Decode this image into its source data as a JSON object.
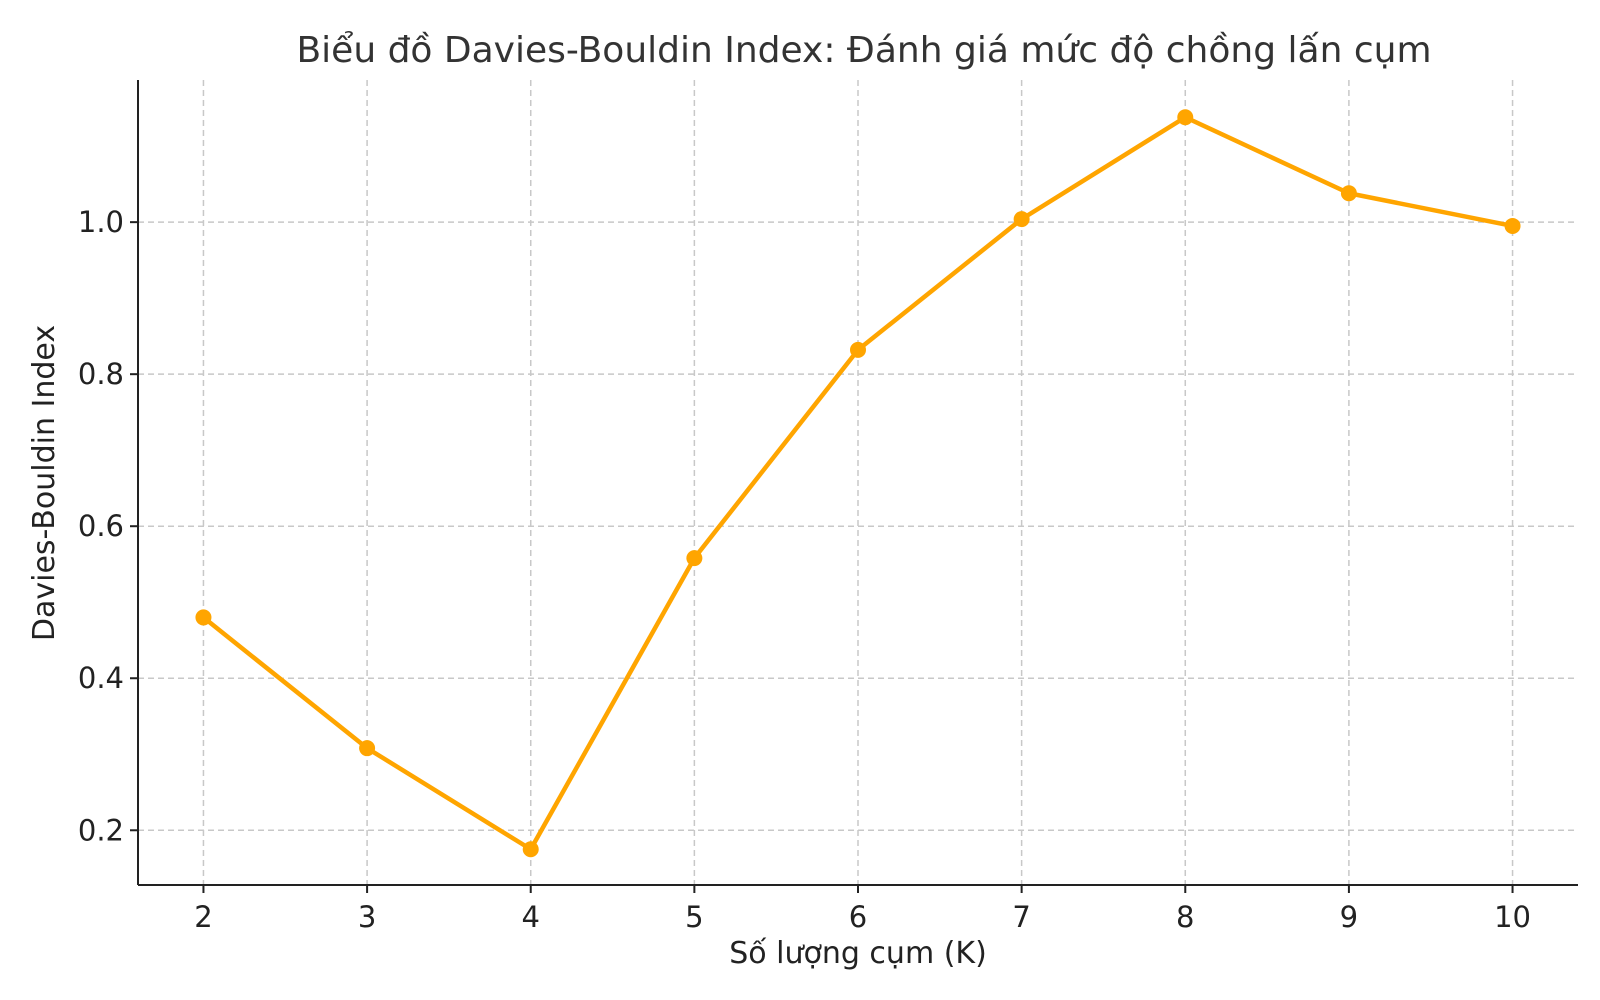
{
  "chart_data": {
    "type": "line",
    "title": "Biểu đồ Davies-Bouldin Index: Đánh giá mức độ chồng lấn cụm",
    "xlabel": "Số lượng cụm (K)",
    "ylabel": "Davies-Bouldin Index",
    "x": [
      2,
      3,
      4,
      5,
      6,
      7,
      8,
      9,
      10
    ],
    "series": [
      {
        "values": [
          0.48,
          0.308,
          0.175,
          0.558,
          0.832,
          1.004,
          1.138,
          1.038,
          0.995
        ],
        "color": "#FFA500",
        "marker": "circle"
      }
    ],
    "xticks": [
      "2",
      "3",
      "4",
      "5",
      "6",
      "7",
      "8",
      "9",
      "10"
    ],
    "yticks": [
      "0.2",
      "0.4",
      "0.6",
      "0.8",
      "1.0"
    ],
    "ytick_values": [
      0.2,
      0.4,
      0.6,
      0.8,
      1.0
    ],
    "xlim": [
      1.6,
      10.4
    ],
    "ylim": [
      0.128,
      1.187
    ],
    "grid": true,
    "legend": "none"
  }
}
